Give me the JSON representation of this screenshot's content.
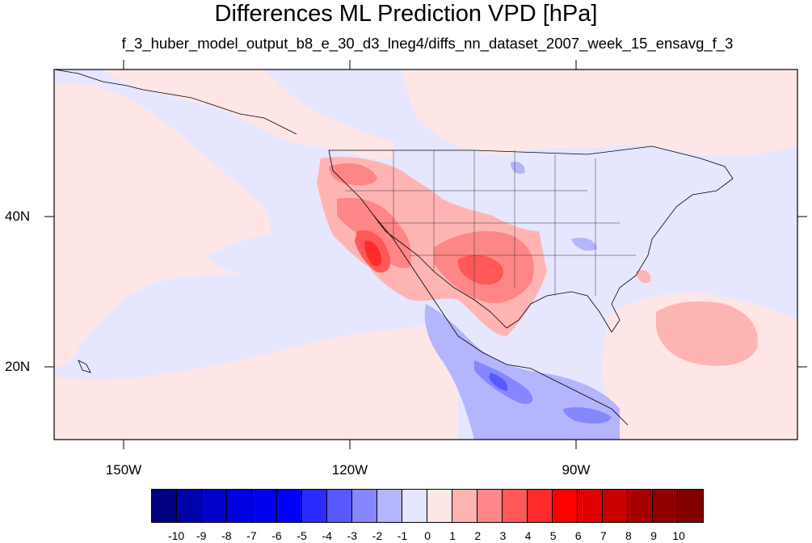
{
  "title": "Differences ML Prediction VPD [hPa]",
  "subtitle": "f_3_huber_model_output_b8_e_30_d3_lneg4/diffs_nn_dataset_2007_week_15_ensavg_f_3",
  "map": {
    "lon_labels": [
      "150W",
      "120W",
      "90W"
    ],
    "lat_labels": [
      "40N",
      "20N"
    ]
  },
  "colorbar": {
    "colors": [
      "#000080",
      "#0000a8",
      "#0000c8",
      "#0000e0",
      "#0000f0",
      "#0000ff",
      "#2b2bff",
      "#5858ff",
      "#8686ff",
      "#b4b4ff",
      "#e6e6ff",
      "#ffe6e6",
      "#ffb4b4",
      "#ff8686",
      "#ff5858",
      "#ff2b2b",
      "#ff0000",
      "#e00000",
      "#c80000",
      "#a80000",
      "#900000",
      "#800000"
    ],
    "labels": [
      "-10",
      "-9",
      "-8",
      "-7",
      "-6",
      "-5",
      "-4",
      "-3",
      "-2",
      "-1",
      "0",
      "1",
      "2",
      "3",
      "4",
      "5",
      "6",
      "7",
      "8",
      "9",
      "10"
    ]
  }
}
